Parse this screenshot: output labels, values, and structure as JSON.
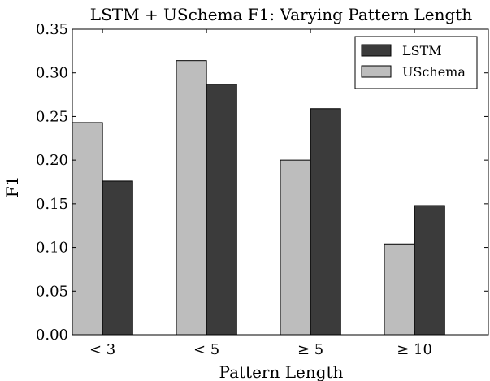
{
  "chart_data": {
    "type": "bar",
    "title": "LSTM + USchema F1: Varying Pattern Length",
    "xlabel": "Pattern Length",
    "ylabel": "F1",
    "categories": [
      "< 3",
      "< 5",
      "≥ 5",
      "≥ 10"
    ],
    "series": [
      {
        "name": "USchema",
        "values": [
          0.243,
          0.314,
          0.2,
          0.104
        ],
        "color": "#bdbdbd"
      },
      {
        "name": "LSTM",
        "values": [
          0.176,
          0.287,
          0.259,
          0.148
        ],
        "color": "#3b3b3b"
      }
    ],
    "ylim": [
      0,
      0.35
    ],
    "yticks": [
      "0.00",
      "0.05",
      "0.10",
      "0.15",
      "0.20",
      "0.25",
      "0.30",
      "0.35"
    ],
    "legend_order": [
      "LSTM",
      "USchema"
    ],
    "legend_position": "top-right",
    "grid": false
  }
}
